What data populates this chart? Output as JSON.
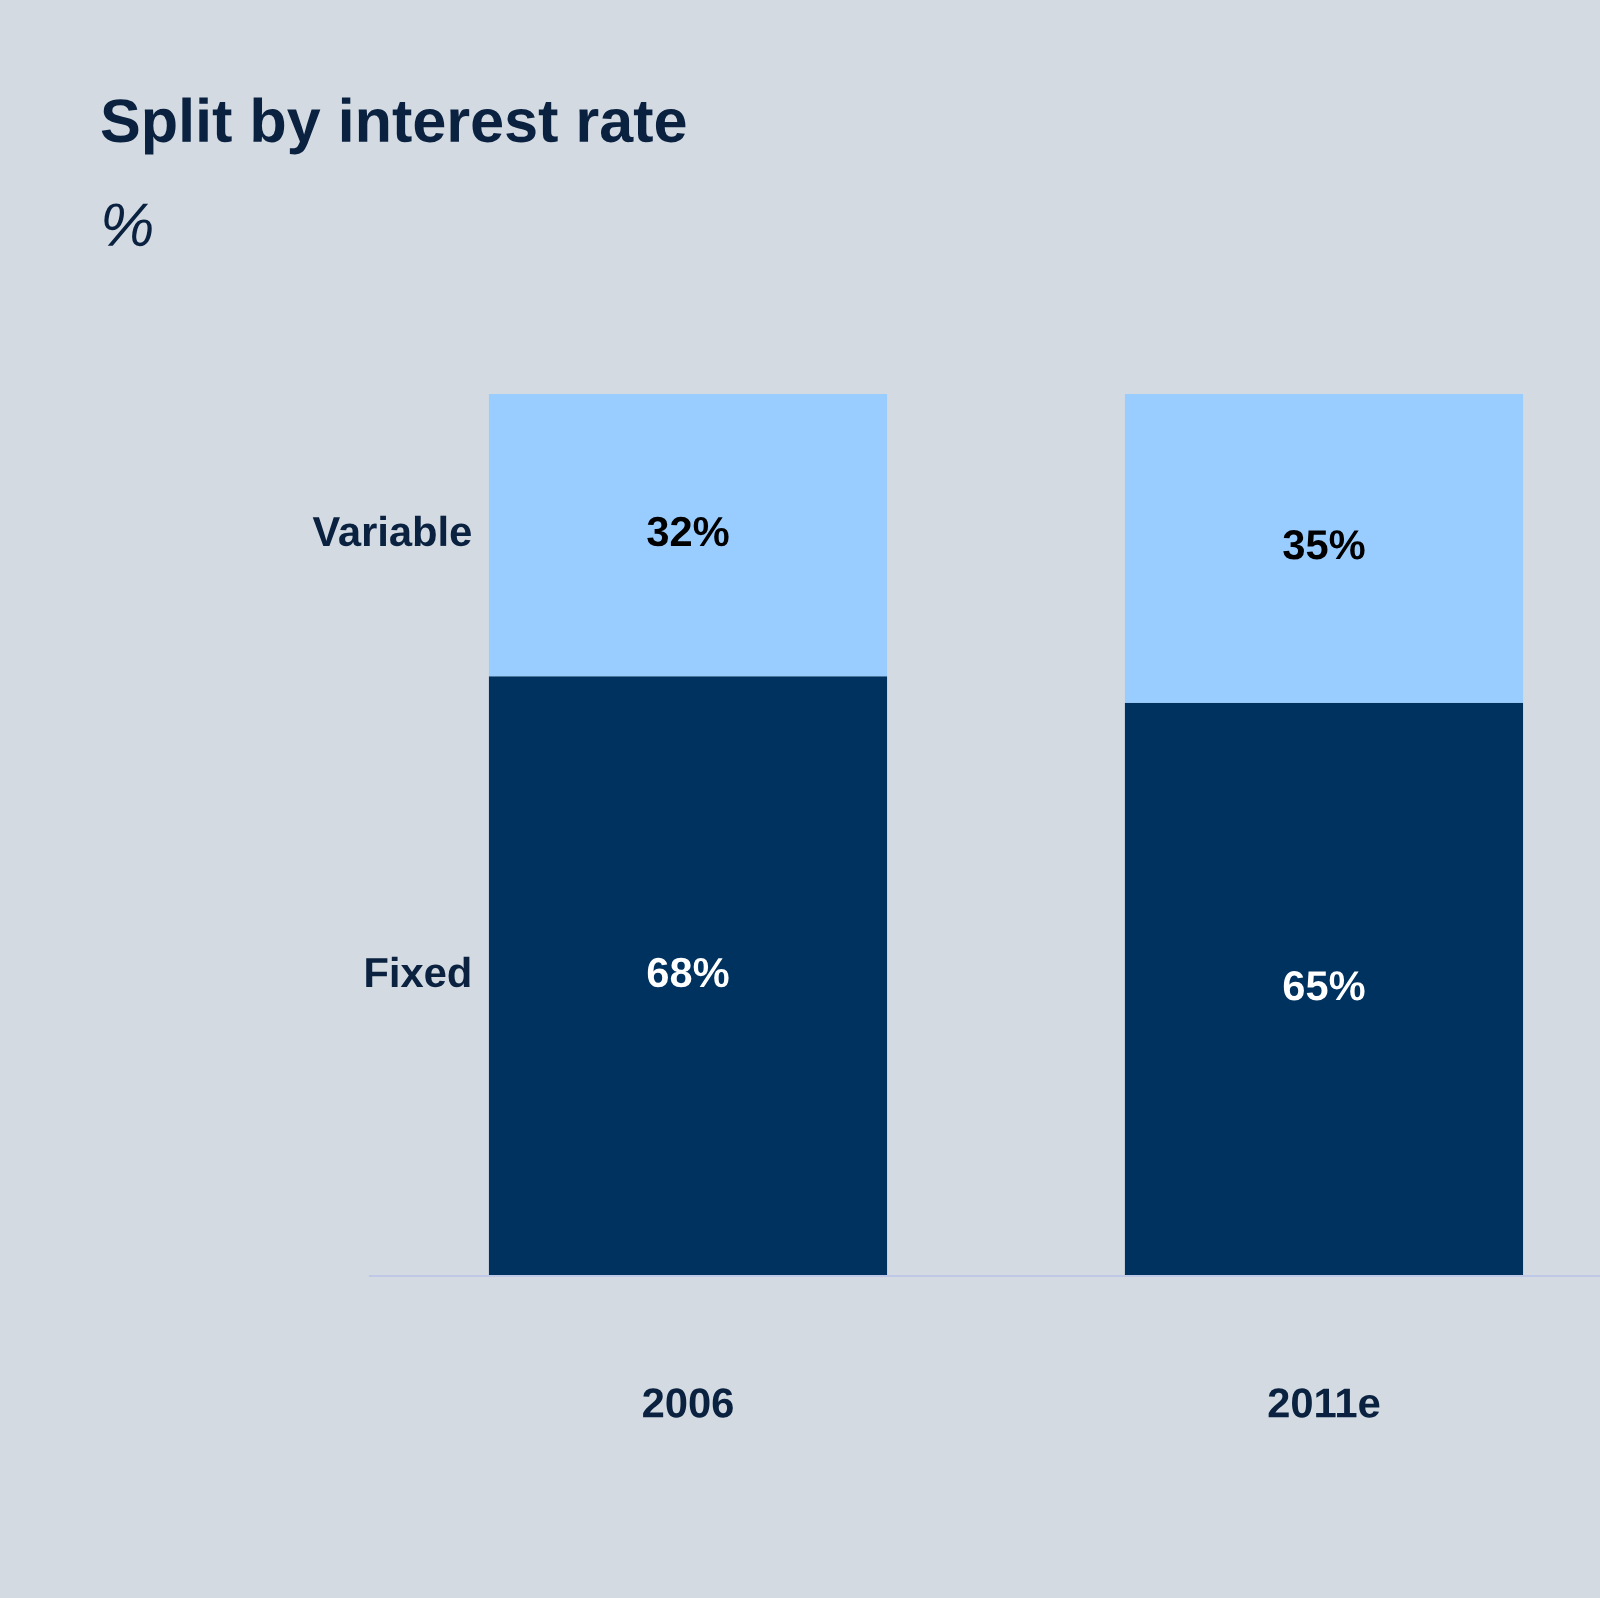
{
  "chart_data": {
    "type": "bar",
    "title": "Split by interest rate",
    "subtitle": "%",
    "stacked": true,
    "categories": [
      "2006",
      "2011e"
    ],
    "series": [
      {
        "name": "Fixed",
        "color": "#00325f",
        "values": [
          68,
          65
        ],
        "value_labels": [
          "68%",
          "65%"
        ]
      },
      {
        "name": "Variable",
        "color": "#99ccff",
        "values": [
          32,
          35
        ],
        "value_labels": [
          "32%",
          "35%"
        ]
      }
    ]
  }
}
